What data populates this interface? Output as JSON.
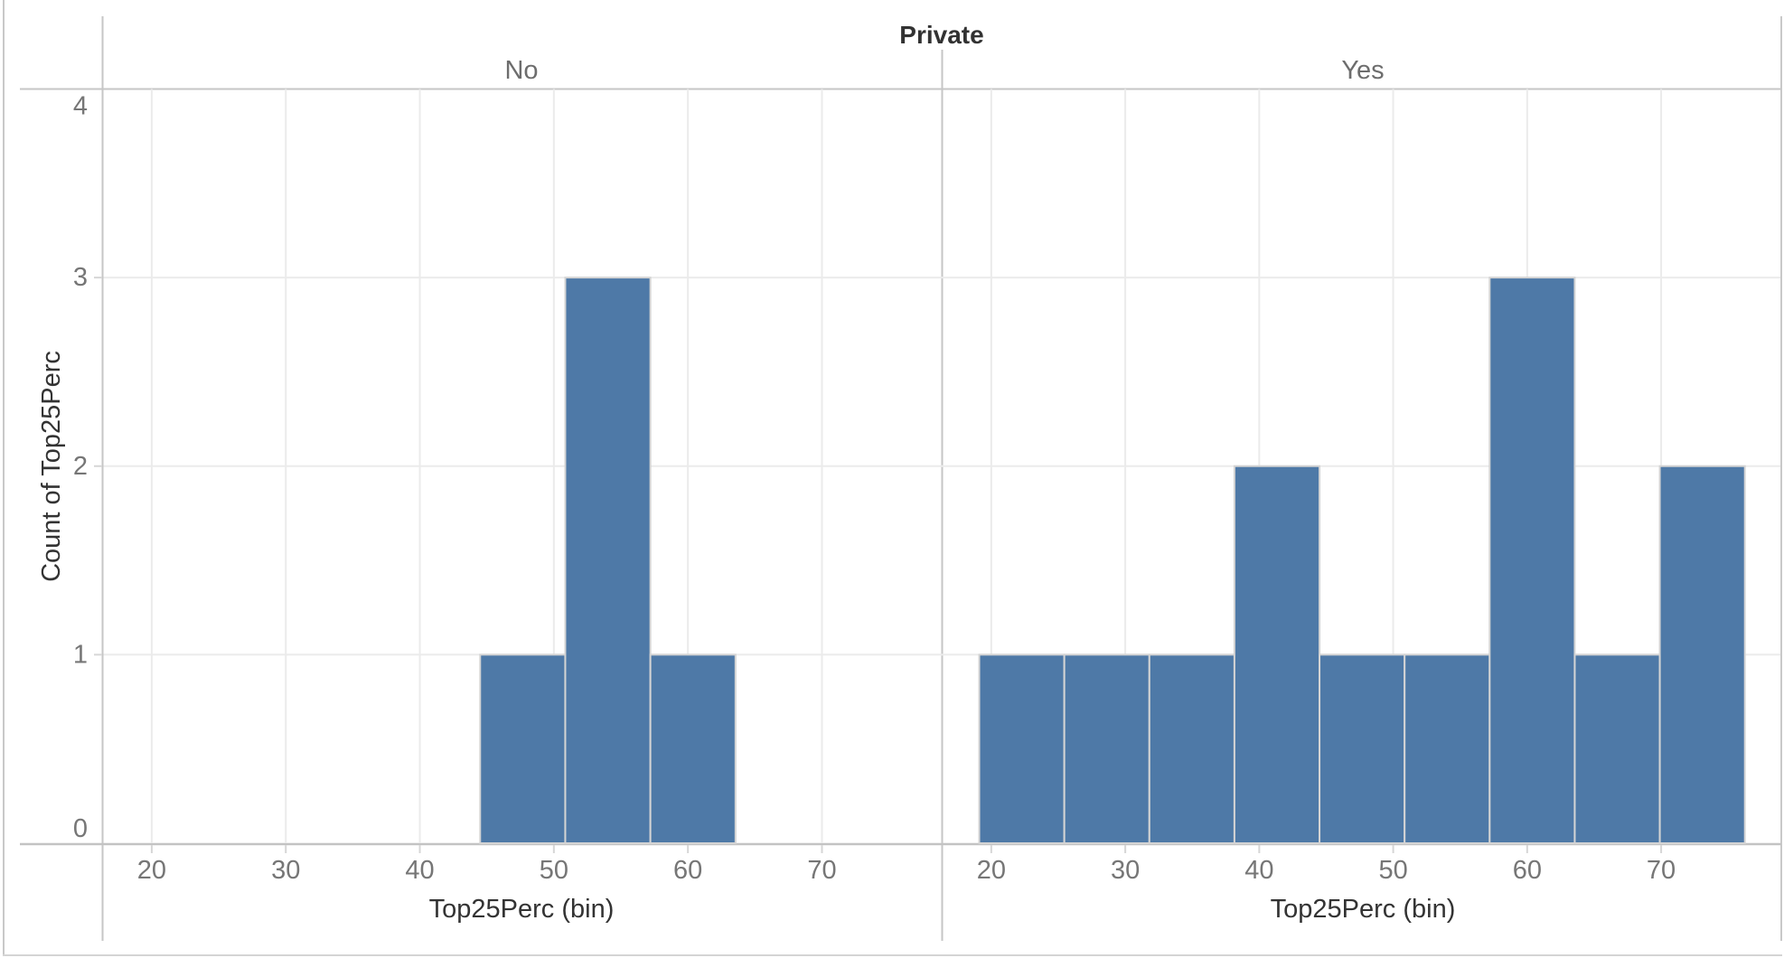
{
  "field_label": "Private",
  "facet_headers": [
    "No",
    "Yes"
  ],
  "y_axis": {
    "title": "Count of Top25Perc",
    "tick_labels": [
      "0",
      "1",
      "2",
      "3",
      "4"
    ]
  },
  "x_axis": {
    "title": "Top25Perc (bin)",
    "tick_labels": [
      "20",
      "30",
      "40",
      "50",
      "60",
      "70"
    ]
  },
  "colors": {
    "bar_fill": "#4e79a7",
    "bar_border": "#d4d4d4",
    "gridline": "#ebebeb",
    "axis_line": "#c6c6c6",
    "tick_mark": "#d6d6d6",
    "tick_text": "#767676",
    "header_text": "#6d6d6d",
    "title_text": "#323232",
    "background": "#ffffff"
  },
  "chart_data": {
    "type": "bar",
    "subtype": "faceted-histogram",
    "title": "Private",
    "xlabel": "Top25Perc (bin)",
    "ylabel": "Count of Top25Perc",
    "legend": "none",
    "grid": true,
    "bin_width": 6.35,
    "xlim": [
      16.4,
      78.9
    ],
    "ylim": [
      0,
      4
    ],
    "x_ticks": [
      20,
      30,
      40,
      50,
      60,
      70
    ],
    "y_ticks": [
      0,
      1,
      2,
      3,
      4
    ],
    "facets": [
      {
        "label": "No",
        "bin_starts": [
          44.5,
          50.85,
          57.2
        ],
        "counts": [
          1,
          3,
          1
        ]
      },
      {
        "label": "Yes",
        "bin_starts": [
          19.1,
          25.45,
          31.8,
          38.15,
          44.5,
          50.85,
          57.2,
          63.55,
          69.9
        ],
        "counts": [
          1,
          1,
          1,
          2,
          1,
          1,
          3,
          1,
          2
        ]
      }
    ]
  }
}
